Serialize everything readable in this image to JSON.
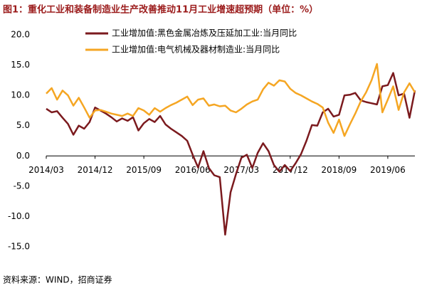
{
  "chart_data": {
    "type": "line",
    "title": "图1：重化工业和装备制造业生产改善推动11月工业增速超预期（单位：%）",
    "source": "资料来源：WIND，招商证券",
    "categories": [
      "2014/03",
      null,
      null,
      null,
      null,
      null,
      null,
      null,
      null,
      "2014/12",
      null,
      null,
      null,
      null,
      null,
      null,
      null,
      null,
      "2015/09",
      null,
      null,
      null,
      null,
      null,
      null,
      null,
      null,
      "2016/06",
      null,
      null,
      null,
      null,
      null,
      null,
      null,
      null,
      "2017/03",
      null,
      null,
      null,
      null,
      null,
      null,
      null,
      null,
      "2017/12",
      null,
      null,
      null,
      null,
      null,
      null,
      null,
      null,
      "2018/09",
      null,
      null,
      null,
      null,
      null,
      null,
      null,
      null,
      "2019/06",
      null,
      null,
      null,
      null,
      null
    ],
    "series": [
      {
        "name": "工业增加值:黑色金属冶炼及压延加工业:当月同比",
        "color": "#7b1a1e",
        "values": [
          7.8,
          7.2,
          7.4,
          6.3,
          5.3,
          3.5,
          5.0,
          4.5,
          5.6,
          8.0,
          7.5,
          7.0,
          6.4,
          5.7,
          6.2,
          5.8,
          6.4,
          4.2,
          5.4,
          6.1,
          5.6,
          6.6,
          5.2,
          4.5,
          3.9,
          3.3,
          2.5,
          0.2,
          -1.9,
          0.8,
          -2.0,
          -3.2,
          -3.5,
          -13.0,
          -6.0,
          -3.0,
          -0.3,
          0.2,
          -2.0,
          0.5,
          2.1,
          0.8,
          -1.5,
          -2.6,
          -1.5,
          -2.5,
          -1.2,
          0.3,
          2.5,
          5.1,
          5.0,
          7.2,
          7.8,
          6.5,
          6.8,
          10.0,
          10.1,
          10.4,
          9.2,
          8.9,
          8.7,
          8.5,
          11.5,
          11.7,
          13.7,
          10.0,
          10.3,
          6.3,
          10.8
        ]
      },
      {
        "name": "工业增加值:电气机械及器材制造业:当月同比",
        "color": "#f5a623",
        "values": [
          10.3,
          11.2,
          9.3,
          10.8,
          10.0,
          8.3,
          9.6,
          8.0,
          6.3,
          7.5,
          7.6,
          7.3,
          7.0,
          6.8,
          6.6,
          7.0,
          6.6,
          7.9,
          7.5,
          6.8,
          7.9,
          7.3,
          7.9,
          8.4,
          8.8,
          9.3,
          9.8,
          8.4,
          9.3,
          9.5,
          8.3,
          8.5,
          8.2,
          8.3,
          7.5,
          7.2,
          7.8,
          8.5,
          9.0,
          9.3,
          11.0,
          12.1,
          11.6,
          12.5,
          12.3,
          11.1,
          10.4,
          10.0,
          9.5,
          9.0,
          8.6,
          8.0,
          5.5,
          3.8,
          6.0,
          3.3,
          5.2,
          7.0,
          9.0,
          10.5,
          12.5,
          15.2,
          7.2,
          9.3,
          11.5,
          7.6,
          10.5,
          12.0,
          10.5
        ]
      }
    ],
    "ylim": [
      -15,
      20
    ],
    "yticks": [
      {
        "value": -15,
        "label": "-15.0"
      },
      {
        "value": -10,
        "label": "-10.0"
      },
      {
        "value": -5,
        "label": "-5.0"
      },
      {
        "value": 0,
        "label": "0.0"
      },
      {
        "value": 5,
        "label": "5.0"
      },
      {
        "value": 10,
        "label": "10.0"
      },
      {
        "value": 15,
        "label": "15.0"
      },
      {
        "value": 20,
        "label": "20.0"
      }
    ],
    "grid": false
  }
}
